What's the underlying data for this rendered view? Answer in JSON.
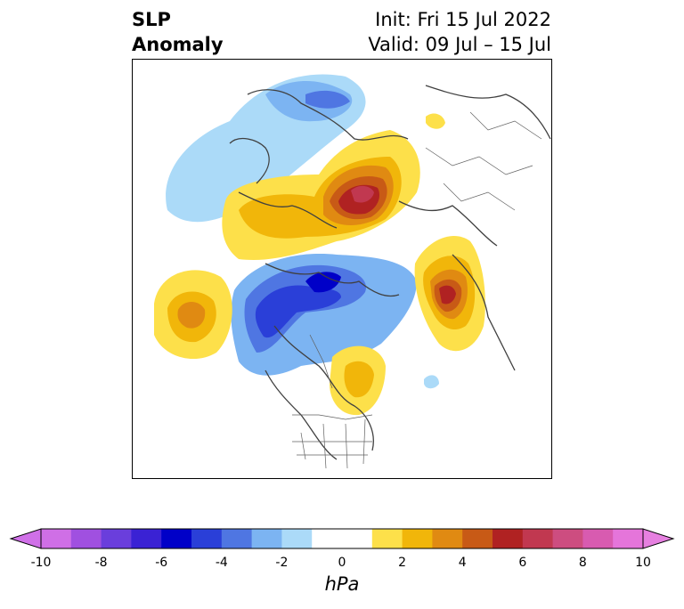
{
  "title": {
    "left_line1": "SLP",
    "left_line2": "Anomaly",
    "right_line1": "Init: Fri 15 Jul 2022",
    "right_line2": "Valid: 09 Jul – 15 Jul"
  },
  "colorbar": {
    "label": "hPa",
    "ticks": [
      "-10",
      "-8",
      "-6",
      "-4",
      "-2",
      "0",
      "2",
      "4",
      "6",
      "8",
      "10"
    ],
    "colors": [
      "#cf6fe6",
      "#a050e0",
      "#6a3edc",
      "#3a22d4",
      "#0000c8",
      "#2a3fd8",
      "#4f76e2",
      "#7cb4f2",
      "#abdaf8",
      "#ffffff",
      "#ffffff",
      "#fde04a",
      "#f1b60a",
      "#e08a12",
      "#c85a16",
      "#b02222",
      "#c13850",
      "#cd4d80",
      "#d85bb0",
      "#e575da"
    ],
    "min_color": "#d070e8",
    "max_color": "#e680e0"
  },
  "map": {
    "projection": "polar-stereographic",
    "region": "Northern Hemisphere",
    "features": [
      "coastlines",
      "country borders",
      "US state borders",
      "Canadian province borders"
    ]
  }
}
